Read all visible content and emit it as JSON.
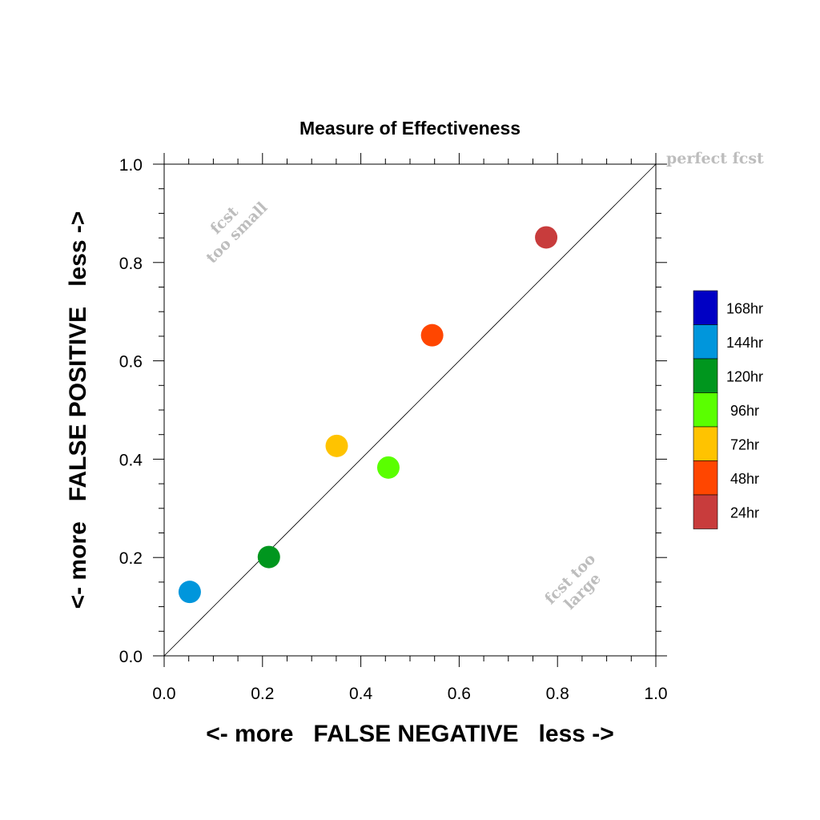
{
  "chart_data": {
    "type": "scatter",
    "title": "Measure of Effectiveness",
    "xlabel": "<- more   FALSE NEGATIVE   less ->",
    "ylabel": "<- more   FALSE POSITIVE   less ->",
    "xlim": [
      0,
      1
    ],
    "ylim": [
      0,
      1
    ],
    "xticks": [
      "0.0",
      "0.2",
      "0.4",
      "0.6",
      "0.8",
      "1.0"
    ],
    "yticks": [
      "0.0",
      "0.2",
      "0.4",
      "0.6",
      "0.8",
      "1.0"
    ],
    "grid": false,
    "reference_line": "diagonal y = x",
    "annotations": {
      "perfect": "perfect fcst",
      "too_small_line1": "fcst",
      "too_small_line2": "too small",
      "too_large_line1": "fcst too",
      "too_large_line2": "large"
    },
    "legend_placement": "right",
    "legend": [
      {
        "label": "168hr",
        "color": "#0000c4"
      },
      {
        "label": "144hr",
        "color": "#0096dc"
      },
      {
        "label": "120hr",
        "color": "#00961e"
      },
      {
        "label": "96hr",
        "color": "#5aff00"
      },
      {
        "label": "72hr",
        "color": "#ffc300"
      },
      {
        "label": "48hr",
        "color": "#ff4600"
      },
      {
        "label": "24hr",
        "color": "#c83c3c"
      }
    ],
    "points": [
      {
        "series": "144hr",
        "x": 0.052,
        "y": 0.13,
        "color": "#0096dc"
      },
      {
        "series": "120hr",
        "x": 0.213,
        "y": 0.201,
        "color": "#00961e"
      },
      {
        "series": "72hr",
        "x": 0.351,
        "y": 0.427,
        "color": "#ffc300"
      },
      {
        "series": "96hr",
        "x": 0.456,
        "y": 0.383,
        "color": "#5aff00"
      },
      {
        "series": "48hr",
        "x": 0.545,
        "y": 0.652,
        "color": "#ff4600"
      },
      {
        "series": "24hr",
        "x": 0.777,
        "y": 0.851,
        "color": "#c83c3c"
      }
    ]
  }
}
